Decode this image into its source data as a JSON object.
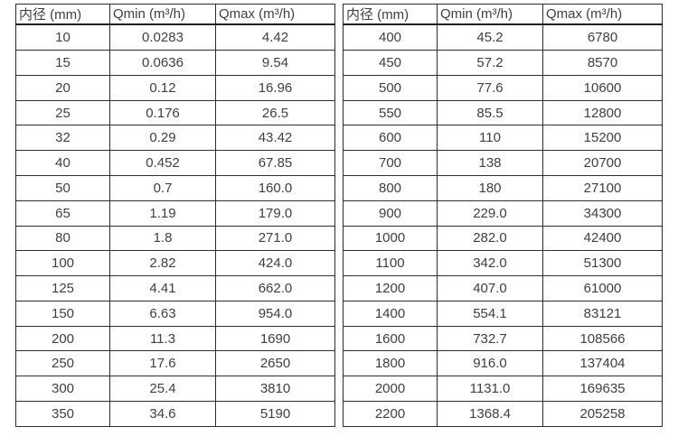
{
  "page": {
    "background_color": "#ffffff",
    "text_color": "#404040",
    "border_color": "#2e2e2e"
  },
  "tables": {
    "left": {
      "headers": [
        "内径 (mm)",
        "Qmin (m³/h)",
        "Qmax (m³/h)"
      ],
      "rows": [
        [
          "10",
          "0.0283",
          "4.42"
        ],
        [
          "15",
          "0.0636",
          "9.54"
        ],
        [
          "20",
          "0.12",
          "16.96"
        ],
        [
          "25",
          "0.176",
          "26.5"
        ],
        [
          "32",
          "0.29",
          "43.42"
        ],
        [
          "40",
          "0.452",
          "67.85"
        ],
        [
          "50",
          "0.7",
          "160.0"
        ],
        [
          "65",
          "1.19",
          "179.0"
        ],
        [
          "80",
          "1.8",
          "271.0"
        ],
        [
          "100",
          "2.82",
          "424.0"
        ],
        [
          "125",
          "4.41",
          "662.0"
        ],
        [
          "150",
          "6.63",
          "954.0"
        ],
        [
          "200",
          "11.3",
          "1690"
        ],
        [
          "250",
          "17.6",
          "2650"
        ],
        [
          "300",
          "25.4",
          "3810"
        ],
        [
          "350",
          "34.6",
          "5190"
        ]
      ]
    },
    "right": {
      "headers": [
        "内径 (mm)",
        "Qmin (m³/h)",
        "Qmax (m³/h)"
      ],
      "rows": [
        [
          "400",
          "45.2",
          "6780"
        ],
        [
          "450",
          "57.2",
          "8570"
        ],
        [
          "500",
          "77.6",
          "10600"
        ],
        [
          "550",
          "85.5",
          "12800"
        ],
        [
          "600",
          "110",
          "15200"
        ],
        [
          "700",
          "138",
          "20700"
        ],
        [
          "800",
          "180",
          "27100"
        ],
        [
          "900",
          "229.0",
          "34300"
        ],
        [
          "1000",
          "282.0",
          "42400"
        ],
        [
          "1100",
          "342.0",
          "51300"
        ],
        [
          "1200",
          "407.0",
          "61000"
        ],
        [
          "1400",
          "554.1",
          "83121"
        ],
        [
          "1600",
          "732.7",
          "108566"
        ],
        [
          "1800",
          "916.0",
          "137404"
        ],
        [
          "2000",
          "1131.0",
          "169635"
        ],
        [
          "2200",
          "1368.4",
          "205258"
        ]
      ]
    }
  }
}
